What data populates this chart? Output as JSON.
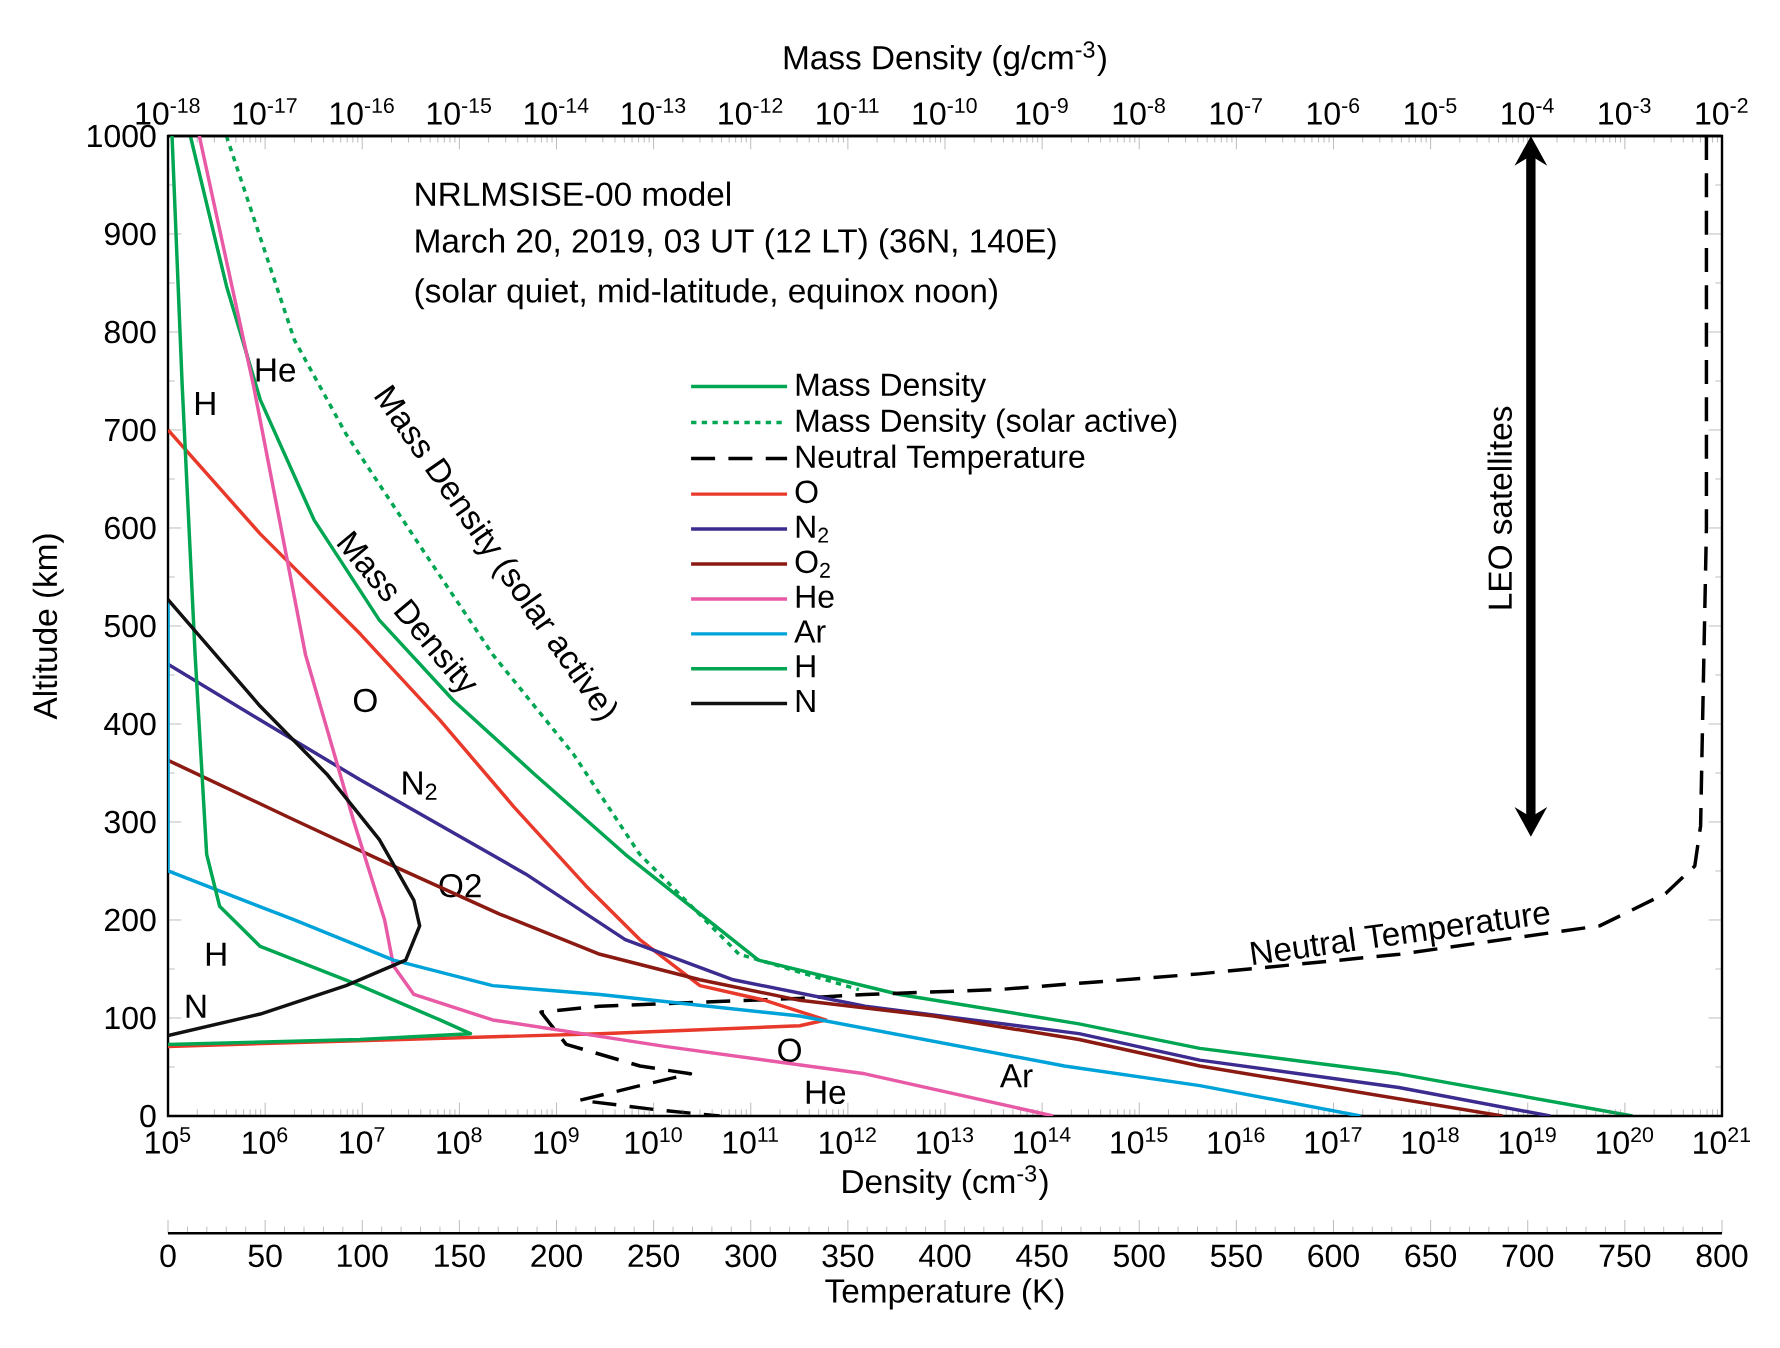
{
  "chart_data": [
    {
      "type": "line",
      "xlabel": "Mass Density (g/cm$^{-3}$)",
      "xlim": [
        1e-18,
        0.01
      ],
      "ylim": [
        0,
        1000
      ],
      "log": "x",
      "legend": "top",
      "marker": "none",
      "tick_labels": "x",
      "xticks": [
        {
          "value": 1e-18,
          "label": "10$^{-18}$"
        },
        {
          "value": 1e-17,
          "label": "10$^{-17}$"
        },
        {
          "value": 1e-16,
          "label": "10$^{-16}$"
        },
        {
          "value": 1e-15,
          "label": "10$^{-15}$"
        },
        {
          "value": 1e-14,
          "label": "10$^{-14}$"
        },
        {
          "value": 1e-13,
          "label": "10$^{-13}$"
        },
        {
          "value": 1e-12,
          "label": "10$^{-12}$"
        },
        {
          "value": 1e-11,
          "label": "10$^{-11}$"
        },
        {
          "value": 1e-10,
          "label": "10$^{-10}$"
        },
        {
          "value": 1e-09,
          "label": "10$^{-9}$"
        },
        {
          "value": 1e-08,
          "label": "10$^{-8}$"
        },
        {
          "value": 1e-07,
          "label": "10$^{-7}$"
        },
        {
          "value": 1e-06,
          "label": "10$^{-6}$"
        },
        {
          "value": 1e-05,
          "label": "10$^{-5}$"
        },
        {
          "value": 0.0001,
          "label": "10$^{-4}$"
        },
        {
          "value": 0.001,
          "label": "10$^{-3}$"
        },
        {
          "value": 0.01,
          "label": "10$^{-2}$"
        }
      ],
      "series": [
        {
          "name": "Mass Density",
          "color": "#00a651",
          "line_style": "solid",
          "x": [
            1.7e-18,
            4e-18,
            8.9e-18,
            3.2e-17,
            1.5e-16,
            8.7e-16,
            5.9e-15,
            5.1e-14,
            1.2e-12,
            3.4e-11,
            2.4e-09,
            4.2e-08,
            4.7e-06,
            0.0012
          ],
          "values": [
            1000,
            847,
            731,
            608,
            506,
            424,
            349,
            267,
            159,
            124,
            94,
            69,
            43,
            0
          ]
        },
        {
          "name": "Mass Density (solar active)",
          "color": "#00a651",
          "line_style": "dotted",
          "x": [
            4e-18,
            2e-17,
            6.8e-17,
            4.5e-16,
            2.2e-15,
            1.5e-14,
            7.2e-14,
            7.6e-13,
            1.3e-11
          ],
          "values": [
            1000,
            792,
            696,
            573,
            471,
            369,
            267,
            165,
            129
          ]
        }
      ],
      "annotations": [
        "NRLMSISE-00 model",
        "March 20, 2019, 03 UT (12 LT) (36N, 140E)",
        "(solar quiet, mid-latitude, equinox noon)",
        "LEO satellites",
        "H",
        "He",
        "Mass Density (solar active)",
        "Mass Density",
        "O",
        "N$_{2}$",
        "O2",
        "H",
        "N",
        "O",
        "He",
        "Ar",
        "Neutral Temperature"
      ]
    },
    {
      "type": "line",
      "xlabel": "Temperature (K)",
      "xlim": [
        0,
        800
      ],
      "ylim": [
        0,
        1000
      ],
      "marker": "none",
      "tick_labels": "x",
      "xticks": [
        0,
        50,
        100,
        150,
        200,
        250,
        300,
        350,
        400,
        450,
        500,
        550,
        600,
        650,
        700,
        750,
        800
      ],
      "series": [
        {
          "name": "Neutral Temperature",
          "color": "#000000",
          "line_style": "dashed",
          "x": [
            792,
            792,
            790,
            789,
            786,
            771,
            737,
            634,
            531,
            428,
            359,
            325,
            222,
            192,
            205,
            243,
            269,
            243,
            212,
            253,
            284
          ],
          "values": [
            1000,
            600,
            400,
            296,
            255,
            227,
            194,
            165,
            145,
            129,
            124,
            120,
            112,
            106,
            73,
            51,
            43,
            31,
            16,
            6,
            0
          ]
        }
      ]
    },
    {
      "type": "line",
      "xlabel": "Density (cm$^{-3}$)",
      "ylabel": "Altitude (km)",
      "xlim": [
        100000.0,
        1e+21
      ],
      "ylim": [
        0,
        1000
      ],
      "log": "x",
      "marker": "none",
      "xticks": [
        {
          "value": 100000.0,
          "label": "10$^{5}$"
        },
        {
          "value": 1000000.0,
          "label": "10$^{6}$"
        },
        {
          "value": 10000000.0,
          "label": "10$^{7}$"
        },
        {
          "value": 100000000.0,
          "label": "10$^{8}$"
        },
        {
          "value": 1000000000.0,
          "label": "10$^{9}$"
        },
        {
          "value": 10000000000.0,
          "label": "10$^{10}$"
        },
        {
          "value": 100000000000.0,
          "label": "10$^{11}$"
        },
        {
          "value": 1000000000000.0,
          "label": "10$^{12}$"
        },
        {
          "value": 10000000000000.0,
          "label": "10$^{13}$"
        },
        {
          "value": 100000000000000.0,
          "label": "10$^{14}$"
        },
        {
          "value": 1000000000000000.0,
          "label": "10$^{15}$"
        },
        {
          "value": 1e+16,
          "label": "10$^{16}$"
        },
        {
          "value": 1e+17,
          "label": "10$^{17}$"
        },
        {
          "value": 1e+18,
          "label": "10$^{18}$"
        },
        {
          "value": 1e+19,
          "label": "10$^{19}$"
        },
        {
          "value": 1e+20,
          "label": "10$^{20}$"
        },
        {
          "value": 1e+21,
          "label": "10$^{21}$"
        }
      ],
      "yticks": [
        0,
        100,
        200,
        300,
        400,
        500,
        600,
        700,
        800,
        900,
        1000
      ],
      "series": [
        {
          "name": "O",
          "color": "#e8392a",
          "line_style": "solid",
          "x": [
            100000.0,
            890000.0,
            9500000.0,
            63000000.0,
            360000000.0,
            2000000000.0,
            7200000000.0,
            30000000000.0,
            140000000000.0,
            590000000000.0,
            320000000000.0,
            2800000000.0,
            25000000.0,
            100000.0
          ],
          "values": [
            700,
            594,
            492,
            404,
            316,
            235,
            180,
            133,
            118,
            98,
            92,
            84,
            78,
            71
          ]
        },
        {
          "name": "N$_{2}$",
          "color": "#3d2b8f",
          "line_style": "solid",
          "x": [
            100000.0,
            890000.0,
            9500000.0,
            480000000.0,
            5100000000.0,
            66000000000.0,
            1500000000000.0,
            240000000000000.0,
            4200000000000000.0,
            4.7e+17,
            1.7e+19
          ],
          "values": [
            461,
            404,
            343,
            247,
            180,
            139,
            112,
            84,
            57,
            29,
            0
          ]
        },
        {
          "name": "O$_{2}$",
          "color": "#8b1a12",
          "line_style": "solid",
          "x": [
            100000.0,
            2000000.0,
            21000000.0,
            260000000.0,
            2800000000.0,
            30000000000.0,
            320000000000.0,
            7600000000000.0,
            240000000000000.0,
            4200000000000000.0,
            5.5e+18
          ],
          "values": [
            363,
            302,
            255,
            206,
            165,
            139,
            118,
            102,
            78,
            51,
            0
          ]
        },
        {
          "name": "He",
          "color": "#e85aa5",
          "line_style": "solid",
          "x": [
            210000.0,
            760000.0,
            2600000.0,
            8100000.0,
            17000000.0,
            21000000.0,
            34000000.0,
            220000000.0,
            13000000000.0,
            1500000000000.0,
            130000000000000.0
          ],
          "values": [
            1000,
            745,
            471,
            302,
            200,
            153,
            124,
            98,
            71,
            43,
            0
          ]
        },
        {
          "name": "Ar",
          "color": "#00a3d9",
          "line_style": "solid",
          "x": [
            100000.0,
            100000.0,
            2000000.0,
            21000000.0,
            220000000.0,
            2800000000.0,
            320000000000.0,
            170000000000000.0,
            4200000000000000.0,
            1.9e+17
          ],
          "values": [
            525,
            250,
            200,
            159,
            133,
            124,
            102,
            51,
            31,
            0
          ]
        },
        {
          "name": "H",
          "color": "#00a651",
          "line_style": "solid",
          "x": [
            110000.0,
            140000.0,
            190000.0,
            250000.0,
            340000.0,
            890000.0,
            9500000.0,
            63000000.0,
            130000000.0,
            9500000.0,
            100000.0
          ],
          "values": [
            1000,
            745,
            471,
            267,
            214,
            173,
            133,
            98,
            84,
            78,
            73
          ]
        },
        {
          "name": "N",
          "color": "#111111",
          "line_style": "solid",
          "x": [
            100000.0,
            890000.0,
            4300000.0,
            15000000.0,
            34000000.0,
            39000000.0,
            28000000.0,
            6800000.0,
            890000.0,
            100000.0
          ],
          "values": [
            527,
            418,
            349,
            282,
            220,
            194,
            159,
            133,
            104,
            82
          ]
        }
      ]
    }
  ]
}
